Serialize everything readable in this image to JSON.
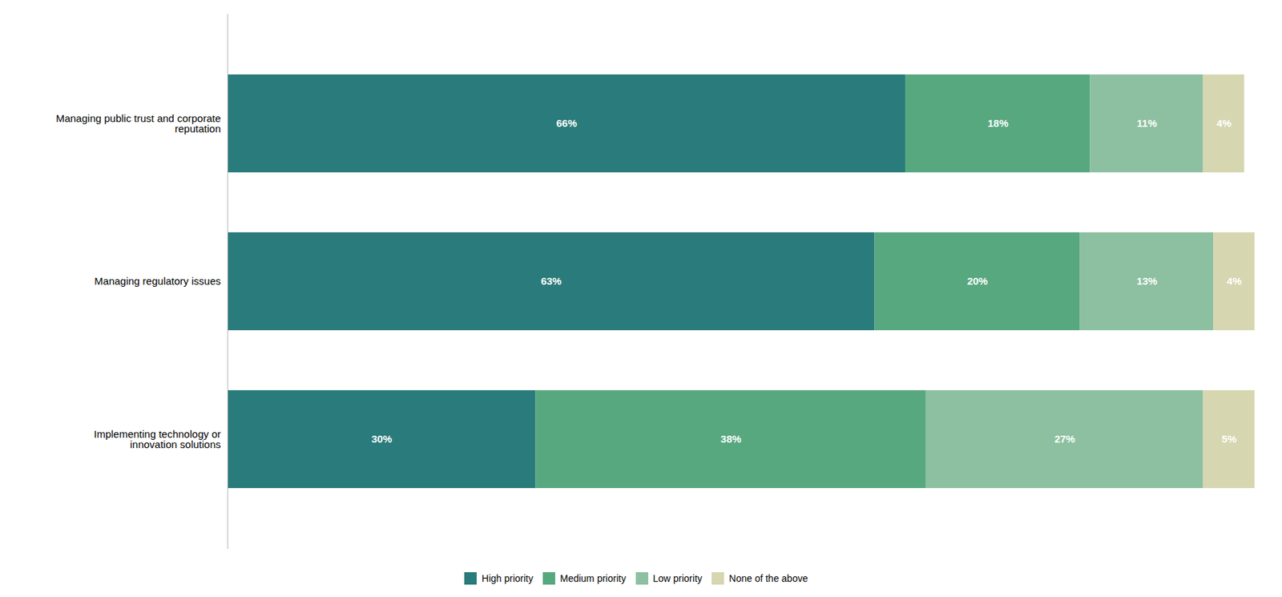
{
  "chart_data": {
    "type": "bar",
    "orientation": "horizontal",
    "stacked": true,
    "categories": [
      "Implementing technology or\ninnovation solutions",
      "Managing regulatory issues",
      "Managing public trust and corporate\nreputation"
    ],
    "series": [
      {
        "name": "High priority",
        "color": "#2a7b7b",
        "values": [
          30,
          63,
          66
        ],
        "value_labels": [
          "30%",
          "63%",
          "66%"
        ]
      },
      {
        "name": "Medium priority",
        "color": "#57a87f",
        "values": [
          38,
          20,
          18
        ],
        "value_labels": [
          "38%",
          "20%",
          "18%"
        ]
      },
      {
        "name": "Low priority",
        "color": "#8dc0a0",
        "values": [
          27,
          13,
          11
        ],
        "value_labels": [
          "27%",
          "13%",
          "11%"
        ]
      },
      {
        "name": "None of the above",
        "color": "#d6d6b0",
        "values": [
          5,
          4,
          4
        ],
        "value_labels": [
          "5%",
          "4%",
          "4%"
        ]
      }
    ],
    "xlim": [
      0,
      100
    ],
    "data_labels": true,
    "tick_labels": "y",
    "grid": false,
    "legend": "bottom"
  }
}
